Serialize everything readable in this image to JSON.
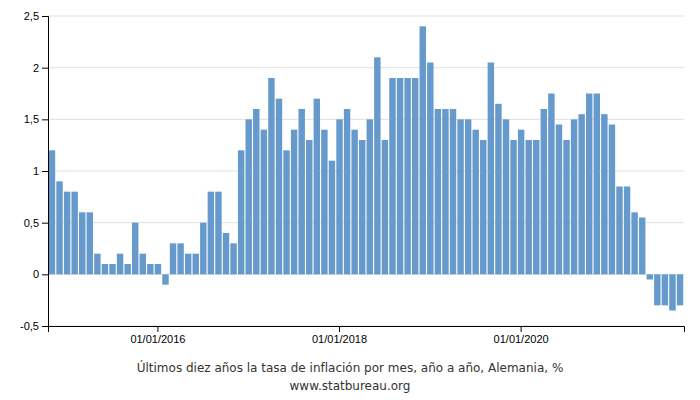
{
  "chart_data": {
    "type": "bar",
    "title": "Últimos diez años la tasa de inflación por mes, año a año, Alemania, %",
    "subtitle": "www.statbureau.org",
    "color": "#6699CC",
    "grid": true,
    "ylim": [
      -0.5,
      2.5
    ],
    "yticks": [
      {
        "value": -0.5,
        "label": "-0,5"
      },
      0,
      {
        "value": 0.5,
        "label": "0,5"
      },
      1,
      {
        "value": 1.5,
        "label": "1,5"
      },
      2,
      {
        "value": 2.5,
        "label": "2,5"
      }
    ],
    "categories": [
      null,
      null,
      null,
      null,
      null,
      null,
      null,
      null,
      null,
      null,
      null,
      null,
      null,
      null,
      "01/01/2016",
      null,
      null,
      null,
      null,
      null,
      null,
      null,
      null,
      null,
      null,
      null,
      null,
      null,
      null,
      null,
      null,
      null,
      null,
      null,
      null,
      null,
      null,
      null,
      "01/01/2018",
      null,
      null,
      null,
      null,
      null,
      null,
      null,
      null,
      null,
      null,
      null,
      null,
      null,
      null,
      null,
      null,
      null,
      null,
      null,
      null,
      null,
      null,
      null,
      "01/01/2020",
      null,
      null,
      null,
      null,
      null,
      null,
      null,
      null,
      null,
      null,
      null,
      null,
      null,
      null,
      null,
      null,
      null,
      null,
      null,
      null,
      null
    ],
    "values": [
      1.2,
      0.9,
      0.8,
      0.8,
      0.6,
      0.6,
      0.2,
      0.1,
      0.1,
      0.2,
      0.1,
      0.5,
      0.2,
      0.1,
      0.1,
      -0.1,
      0.3,
      0.3,
      0.2,
      0.2,
      0.5,
      0.8,
      0.8,
      0.4,
      0.3,
      1.2,
      1.5,
      1.6,
      1.4,
      1.9,
      1.7,
      1.2,
      1.4,
      1.6,
      1.3,
      1.7,
      1.4,
      1.1,
      1.5,
      1.6,
      1.4,
      1.3,
      1.5,
      2.1,
      1.3,
      1.9,
      1.9,
      1.9,
      1.9,
      2.4,
      2.05,
      1.6,
      1.6,
      1.6,
      1.5,
      1.5,
      1.4,
      1.3,
      2.05,
      1.65,
      1.5,
      1.3,
      1.4,
      1.3,
      1.3,
      1.6,
      1.75,
      1.45,
      1.3,
      1.5,
      1.55,
      1.75,
      1.75,
      1.55,
      1.45,
      0.85,
      0.85,
      0.6,
      0.55,
      -0.05,
      -0.3,
      -0.3,
      -0.35,
      -0.3
    ]
  }
}
